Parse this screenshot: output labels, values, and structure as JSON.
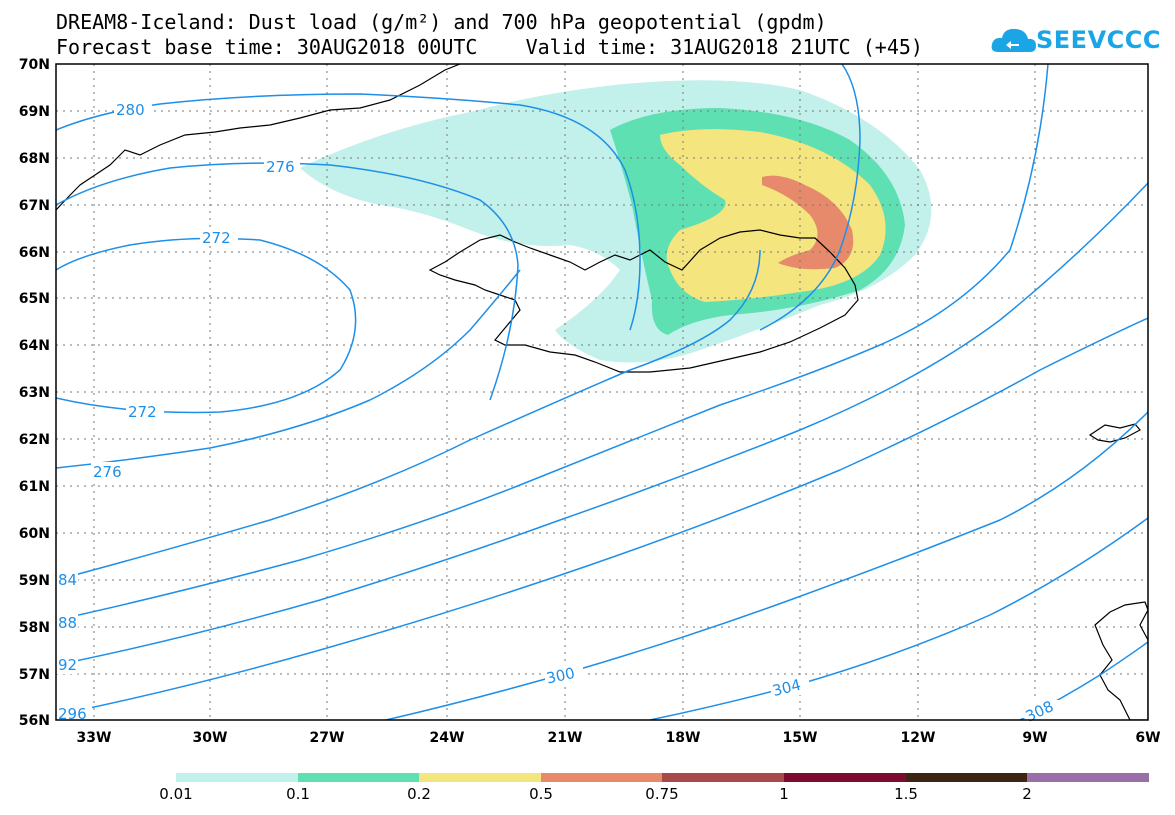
{
  "header": {
    "title_line1": "DREAM8-Iceland: Dust load (g/m²) and 700 hPa geopotential (gpdm)",
    "title_line2": "Forecast base time: 30AUG2018 00UTC    Valid time: 31AUG2018 21UTC (+45)"
  },
  "logo": {
    "text": "SEEVCCC",
    "color": "#1aa6e6"
  },
  "map": {
    "lat_labels": [
      "70N",
      "69N",
      "68N",
      "67N",
      "66N",
      "65N",
      "64N",
      "63N",
      "62N",
      "61N",
      "60N",
      "59N",
      "58N",
      "57N",
      "56N"
    ],
    "lon_labels": [
      "33W",
      "30W",
      "27W",
      "24W",
      "21W",
      "18W",
      "15W",
      "12W",
      "9W",
      "6W"
    ],
    "contour_labels": [
      "280",
      "276",
      "272",
      "272",
      "276",
      "84",
      "88",
      "92",
      "296",
      "300",
      "304",
      "308"
    ],
    "contour_color": "#1e8fe8"
  },
  "colorbar": {
    "colors": [
      "#c2f0ea",
      "#5ee0b3",
      "#f4e57f",
      "#e68a6b",
      "#a94a4a",
      "#7d0b2e",
      "#3d2415",
      "#9a6fa8"
    ],
    "labels": [
      "0.01",
      "0.1",
      "0.2",
      "0.5",
      "0.75",
      "1",
      "1.5",
      "2"
    ]
  }
}
